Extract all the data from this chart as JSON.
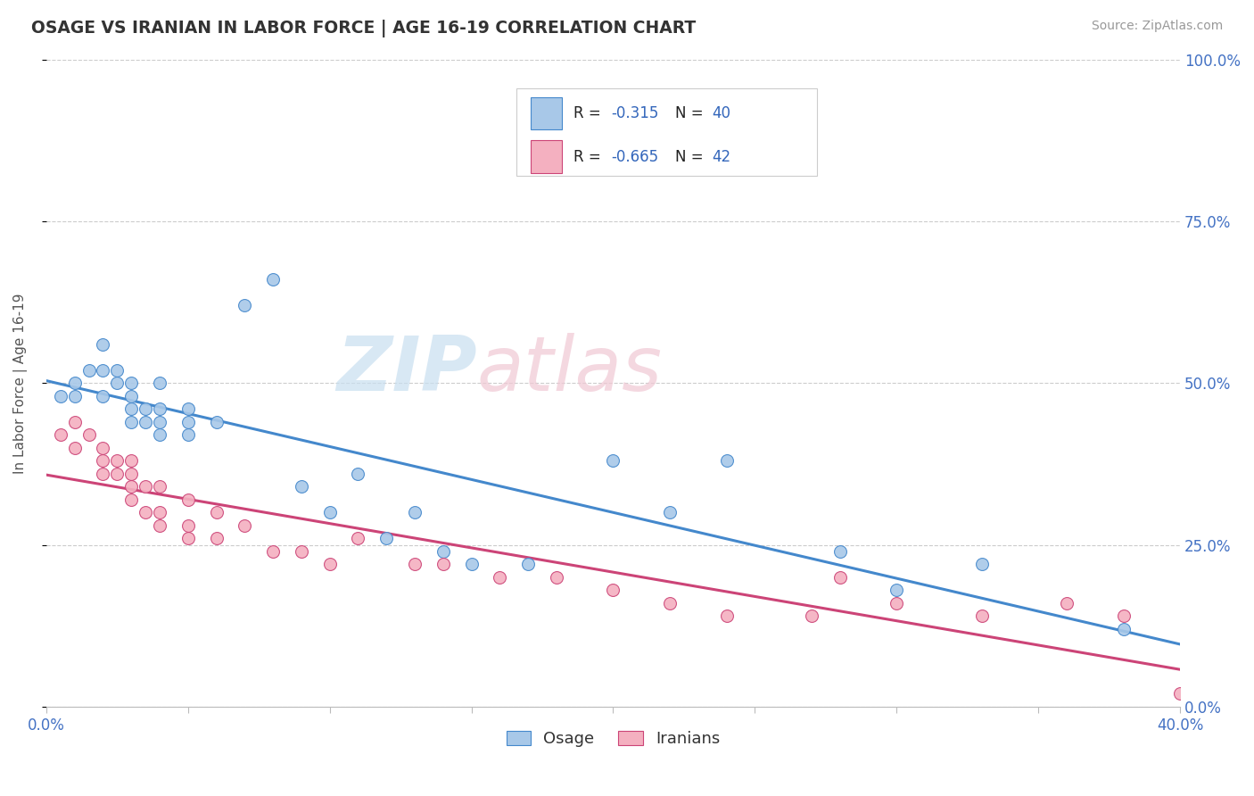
{
  "title": "OSAGE VS IRANIAN IN LABOR FORCE | AGE 16-19 CORRELATION CHART",
  "source": "Source: ZipAtlas.com",
  "ylabel": "In Labor Force | Age 16-19",
  "xlim": [
    0.0,
    0.4
  ],
  "ylim": [
    0.0,
    1.0
  ],
  "xticks": [
    0.0,
    0.05,
    0.1,
    0.15,
    0.2,
    0.25,
    0.3,
    0.35,
    0.4
  ],
  "yticks": [
    0.0,
    0.25,
    0.5,
    0.75,
    1.0
  ],
  "osage_color": "#a8c8e8",
  "iranian_color": "#f4b0c0",
  "osage_line_color": "#4488cc",
  "iranian_line_color": "#cc4477",
  "watermark_zip": "#c8dff0",
  "watermark_atlas": "#f0c8d4",
  "background_color": "#ffffff",
  "grid_color": "#cccccc",
  "title_color": "#333333",
  "axis_label_color": "#4472c4",
  "legend_val_color": "#3366bb",
  "osage_x": [
    0.005,
    0.01,
    0.01,
    0.015,
    0.02,
    0.02,
    0.02,
    0.025,
    0.025,
    0.03,
    0.03,
    0.03,
    0.03,
    0.035,
    0.035,
    0.04,
    0.04,
    0.04,
    0.04,
    0.05,
    0.05,
    0.05,
    0.06,
    0.07,
    0.08,
    0.09,
    0.1,
    0.11,
    0.12,
    0.13,
    0.14,
    0.15,
    0.17,
    0.2,
    0.22,
    0.24,
    0.28,
    0.3,
    0.33,
    0.38
  ],
  "osage_y": [
    0.48,
    0.5,
    0.48,
    0.52,
    0.56,
    0.52,
    0.48,
    0.52,
    0.5,
    0.5,
    0.48,
    0.46,
    0.44,
    0.46,
    0.44,
    0.46,
    0.44,
    0.42,
    0.5,
    0.44,
    0.42,
    0.46,
    0.44,
    0.62,
    0.66,
    0.34,
    0.3,
    0.36,
    0.26,
    0.3,
    0.24,
    0.22,
    0.22,
    0.38,
    0.3,
    0.38,
    0.24,
    0.18,
    0.22,
    0.12
  ],
  "iranian_x": [
    0.005,
    0.01,
    0.01,
    0.015,
    0.02,
    0.02,
    0.02,
    0.025,
    0.025,
    0.03,
    0.03,
    0.03,
    0.03,
    0.035,
    0.035,
    0.04,
    0.04,
    0.04,
    0.05,
    0.05,
    0.05,
    0.06,
    0.06,
    0.07,
    0.08,
    0.09,
    0.1,
    0.11,
    0.13,
    0.14,
    0.16,
    0.18,
    0.2,
    0.22,
    0.24,
    0.27,
    0.3,
    0.33,
    0.36,
    0.28,
    0.38,
    0.4
  ],
  "iranian_y": [
    0.42,
    0.44,
    0.4,
    0.42,
    0.4,
    0.38,
    0.36,
    0.38,
    0.36,
    0.38,
    0.36,
    0.34,
    0.32,
    0.34,
    0.3,
    0.34,
    0.3,
    0.28,
    0.32,
    0.28,
    0.26,
    0.3,
    0.26,
    0.28,
    0.24,
    0.24,
    0.22,
    0.26,
    0.22,
    0.22,
    0.2,
    0.2,
    0.18,
    0.16,
    0.14,
    0.14,
    0.16,
    0.14,
    0.16,
    0.2,
    0.14,
    0.02
  ]
}
